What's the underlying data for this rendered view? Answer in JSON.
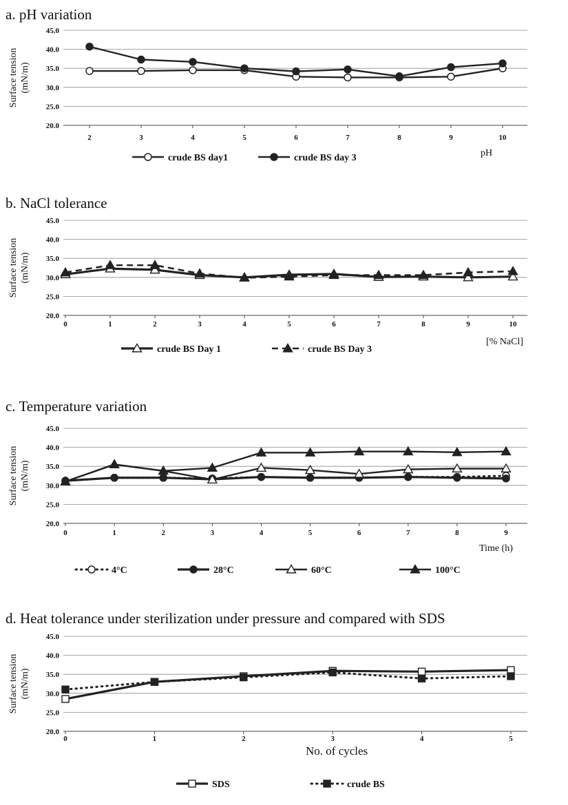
{
  "chart_data": [
    {
      "id": "a",
      "type": "line",
      "title": "a. pH variation",
      "ylabel_line1": "Surface tension",
      "ylabel_line2": "(mN/m)",
      "xlabel": "pH",
      "ylim": [
        20.0,
        45.0
      ],
      "yticks": [
        "20.0",
        "25.0",
        "30.0",
        "35.0",
        "40.0",
        "45.0"
      ],
      "categories": [
        "2",
        "3",
        "4",
        "5",
        "6",
        "7",
        "8",
        "9",
        "10"
      ],
      "grid": true,
      "legend_position": "bottom",
      "series": [
        {
          "name": "crude BS day1",
          "marker": "open-circle",
          "line": "solid",
          "color": "#222222",
          "values": [
            34.3,
            34.3,
            34.5,
            34.5,
            32.8,
            32.6,
            32.6,
            32.8,
            35.0
          ]
        },
        {
          "name": "crude BS day 3",
          "marker": "filled-circle",
          "line": "solid",
          "color": "#222222",
          "values": [
            40.7,
            37.3,
            36.7,
            35.0,
            34.2,
            34.7,
            32.9,
            35.3,
            36.3
          ]
        }
      ]
    },
    {
      "id": "b",
      "type": "line",
      "title": "b. NaCl tolerance",
      "ylabel_line1": "Surface tension",
      "ylabel_line2": "(mN/m)",
      "xlabel": "[% NaCl]",
      "ylim": [
        20.0,
        45.0
      ],
      "yticks": [
        "20.0",
        "25.0",
        "30.0",
        "35.0",
        "40.0",
        "45.0"
      ],
      "categories": [
        "0",
        "1",
        "2",
        "3",
        "4",
        "5",
        "6",
        "7",
        "8",
        "9",
        "10"
      ],
      "grid": true,
      "legend_position": "bottom",
      "series": [
        {
          "name": "crude BS   Day 1",
          "marker": "open-triangle",
          "line": "thick-solid",
          "color": "#222222",
          "values": [
            30.8,
            32.3,
            32.0,
            30.6,
            30.0,
            30.7,
            30.9,
            30.1,
            30.2,
            30.0,
            30.2
          ]
        },
        {
          "name": "crude BS Day 3",
          "marker": "filled-triangle",
          "line": "dashed",
          "color": "#222222",
          "values": [
            31.3,
            33.2,
            33.2,
            31.0,
            29.9,
            30.2,
            30.6,
            30.6,
            30.6,
            31.3,
            31.6
          ]
        }
      ]
    },
    {
      "id": "c",
      "type": "line",
      "title": "c. Temperature variation",
      "ylabel_line1": "Surface tension",
      "ylabel_line2": "(mN/m)",
      "xlabel": "Time (h)",
      "ylim": [
        20.0,
        45.0
      ],
      "yticks": [
        "20.0",
        "25.0",
        "30.0",
        "35.0",
        "40.0",
        "45.0"
      ],
      "categories": [
        "0",
        "1",
        "2",
        "3",
        "4",
        "5",
        "6",
        "7",
        "8",
        "9"
      ],
      "grid": true,
      "legend_position": "bottom",
      "series": [
        {
          "name": "4°C",
          "marker": "open-circle",
          "line": "dotted",
          "color": "#222222",
          "values": [
            31.2,
            32.0,
            32.0,
            31.8,
            32.2,
            32.0,
            32.0,
            32.2,
            32.2,
            32.5
          ]
        },
        {
          "name": "28°C",
          "marker": "filled-circle",
          "line": "thick-solid",
          "color": "#222222",
          "values": [
            31.2,
            32.0,
            32.0,
            31.6,
            32.2,
            32.0,
            32.0,
            32.2,
            32.0,
            31.8
          ]
        },
        {
          "name": "60°C",
          "marker": "open-triangle",
          "line": "solid",
          "color": "#222222",
          "values": [
            31.0,
            35.5,
            33.8,
            31.5,
            34.6,
            34.0,
            33.0,
            34.2,
            34.4,
            34.4
          ]
        },
        {
          "name": "100°C",
          "marker": "filled-triangle",
          "line": "solid",
          "color": "#222222",
          "values": [
            31.0,
            35.5,
            33.8,
            34.6,
            38.6,
            38.6,
            38.9,
            38.9,
            38.7,
            38.9
          ]
        }
      ]
    },
    {
      "id": "d",
      "type": "line",
      "title": "d. Heat tolerance under sterilization under pressure and compared with SDS",
      "ylabel_line1": "Surface tension",
      "ylabel_line2": "(mN/m)",
      "xlabel": "No. of cycles",
      "ylim": [
        20.0,
        45.0
      ],
      "yticks": [
        "20.0",
        "25.0",
        "30.0",
        "35.0",
        "40.0",
        "45.0"
      ],
      "categories": [
        "0",
        "1",
        "2",
        "3",
        "4",
        "5"
      ],
      "grid": true,
      "legend_position": "bottom",
      "series": [
        {
          "name": "SDS",
          "marker": "open-square",
          "line": "thick-solid",
          "color": "#222222",
          "values": [
            28.5,
            33.0,
            34.5,
            35.9,
            35.7,
            36.1
          ]
        },
        {
          "name": "crude BS",
          "marker": "filled-square",
          "line": "dotted",
          "color": "#222222",
          "values": [
            31.0,
            33.0,
            34.2,
            35.5,
            33.9,
            34.5
          ]
        }
      ]
    }
  ]
}
